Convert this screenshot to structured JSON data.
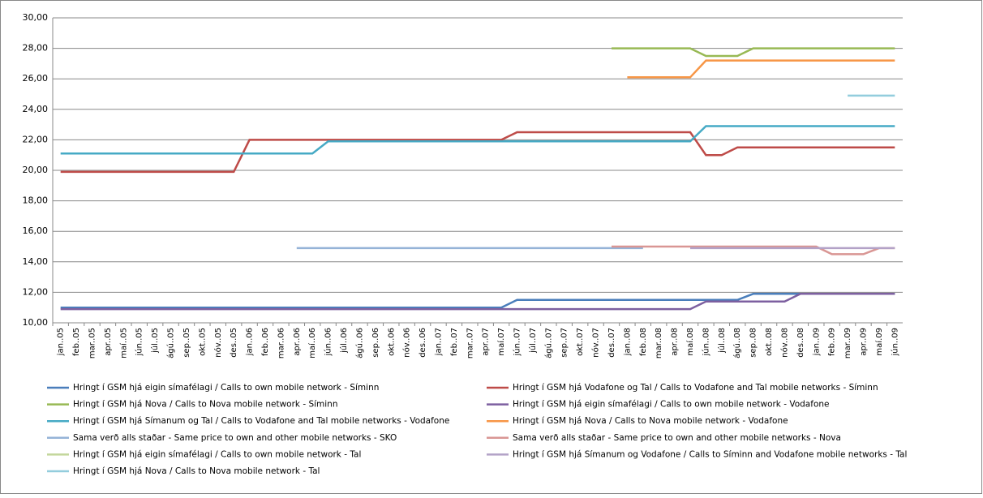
{
  "chart_data": {
    "type": "line",
    "categories": [
      "jan..05",
      "feb..05",
      "mar..05",
      "apr..05",
      "maí..05",
      "jún..05",
      "júl..05",
      "ágú..05",
      "sep..05",
      "okt..05",
      "nóv..05",
      "des..05",
      "jan..06",
      "feb..06",
      "mar..06",
      "apr..06",
      "maí..06",
      "jún..06",
      "júl..06",
      "ágú..06",
      "sep..06",
      "okt..06",
      "nóv..06",
      "des..06",
      "jan..07",
      "feb..07",
      "mar..07",
      "apr..07",
      "maí.07",
      "jún..07",
      "júl..07",
      "ágú..07",
      "sep..07",
      "okt..07",
      "nóv..07",
      "des..07",
      "jan..08",
      "feb..08",
      "mar..08",
      "apr..08",
      "maí.08",
      "jún..08",
      "júl..08",
      "ágú..08",
      "sep..08",
      "okt..08",
      "nóv..08",
      "des..08",
      "jan..09",
      "feb..09",
      "mar..09",
      "apr..09",
      "maí.09",
      "jún..09"
    ],
    "ylim": [
      10,
      30
    ],
    "yticks": [
      {
        "value": 10,
        "label": "10,00"
      },
      {
        "value": 12,
        "label": "12,00"
      },
      {
        "value": 14,
        "label": "14,00"
      },
      {
        "value": 16,
        "label": "16,00"
      },
      {
        "value": 18,
        "label": "18,00"
      },
      {
        "value": 20,
        "label": "20,00"
      },
      {
        "value": 22,
        "label": "22,00"
      },
      {
        "value": 24,
        "label": "24,00"
      },
      {
        "value": 26,
        "label": "26,00"
      },
      {
        "value": 28,
        "label": "28,00"
      },
      {
        "value": 30,
        "label": "30,00"
      }
    ],
    "grid": true,
    "series": [
      {
        "name": "Hringt í GSM hjá eigin símafélagi / Calls to own mobile network - Síminn",
        "color": "#4a7ebb",
        "values": [
          11,
          11,
          11,
          11,
          11,
          11,
          11,
          11,
          11,
          11,
          11,
          11,
          11,
          11,
          11,
          11,
          11,
          11,
          11,
          11,
          11,
          11,
          11,
          11,
          11,
          11,
          11,
          11,
          11,
          11.5,
          11.5,
          11.5,
          11.5,
          11.5,
          11.5,
          11.5,
          11.5,
          11.5,
          11.5,
          11.5,
          11.5,
          11.5,
          11.5,
          11.5,
          11.9,
          11.9,
          11.9,
          11.9,
          11.9,
          11.9,
          11.9,
          11.9,
          11.9,
          11.9
        ]
      },
      {
        "name": "Hringt í GSM hjá Vodafone og Tal / Calls to Vodafone and Tal mobile networks - Síminn",
        "color": "#be4b48",
        "values": [
          19.9,
          19.9,
          19.9,
          19.9,
          19.9,
          19.9,
          19.9,
          19.9,
          19.9,
          19.9,
          19.9,
          19.9,
          22,
          22,
          22,
          22,
          22,
          22,
          22,
          22,
          22,
          22,
          22,
          22,
          22,
          22,
          22,
          22,
          22,
          22.5,
          22.5,
          22.5,
          22.5,
          22.5,
          22.5,
          22.5,
          22.5,
          22.5,
          22.5,
          22.5,
          22.5,
          21,
          21,
          21.5,
          21.5,
          21.5,
          21.5,
          21.5,
          21.5,
          21.5,
          21.5,
          21.5,
          21.5,
          21.5
        ]
      },
      {
        "name": "Hringt í GSM hjá Nova / Calls to Nova mobile network - Síminn",
        "color": "#98b954",
        "values": [
          null,
          null,
          null,
          null,
          null,
          null,
          null,
          null,
          null,
          null,
          null,
          null,
          null,
          null,
          null,
          null,
          null,
          null,
          null,
          null,
          null,
          null,
          null,
          null,
          null,
          null,
          null,
          null,
          null,
          null,
          null,
          null,
          null,
          null,
          null,
          28,
          28,
          28,
          28,
          28,
          28,
          27.5,
          27.5,
          27.5,
          28,
          28,
          28,
          28,
          28,
          28,
          28,
          28,
          28,
          28
        ]
      },
      {
        "name": "Hringt í GSM hjá eigin símafélagi  / Calls to own mobile network - Vodafone",
        "color": "#7d60a0",
        "values": [
          10.9,
          10.9,
          10.9,
          10.9,
          10.9,
          10.9,
          10.9,
          10.9,
          10.9,
          10.9,
          10.9,
          10.9,
          10.9,
          10.9,
          10.9,
          10.9,
          10.9,
          10.9,
          10.9,
          10.9,
          10.9,
          10.9,
          10.9,
          10.9,
          10.9,
          10.9,
          10.9,
          10.9,
          10.9,
          10.9,
          10.9,
          10.9,
          10.9,
          10.9,
          10.9,
          10.9,
          10.9,
          10.9,
          10.9,
          10.9,
          10.9,
          11.4,
          11.4,
          11.4,
          11.4,
          11.4,
          11.4,
          11.9,
          11.9,
          11.9,
          11.9,
          11.9,
          11.9,
          11.9
        ]
      },
      {
        "name": "Hringt í GSM hjá Símanum og Tal / Calls to Vodafone and Tal mobile networks - Vodafone",
        "color": "#46aac5",
        "values": [
          21.1,
          21.1,
          21.1,
          21.1,
          21.1,
          21.1,
          21.1,
          21.1,
          21.1,
          21.1,
          21.1,
          21.1,
          21.1,
          21.1,
          21.1,
          21.1,
          21.1,
          21.9,
          21.9,
          21.9,
          21.9,
          21.9,
          21.9,
          21.9,
          21.9,
          21.9,
          21.9,
          21.9,
          21.9,
          21.9,
          21.9,
          21.9,
          21.9,
          21.9,
          21.9,
          21.9,
          21.9,
          21.9,
          21.9,
          21.9,
          21.9,
          22.9,
          22.9,
          22.9,
          22.9,
          22.9,
          22.9,
          22.9,
          22.9,
          22.9,
          22.9,
          22.9,
          22.9,
          22.9
        ]
      },
      {
        "name": "Hringt í GSM hjá Nova / Calls to Nova mobile network - Vodafone",
        "color": "#f79646",
        "values": [
          null,
          null,
          null,
          null,
          null,
          null,
          null,
          null,
          null,
          null,
          null,
          null,
          null,
          null,
          null,
          null,
          null,
          null,
          null,
          null,
          null,
          null,
          null,
          null,
          null,
          null,
          null,
          null,
          null,
          null,
          null,
          null,
          null,
          null,
          null,
          null,
          26.1,
          26.1,
          26.1,
          26.1,
          26.1,
          27.2,
          27.2,
          27.2,
          27.2,
          27.2,
          27.2,
          27.2,
          27.2,
          27.2,
          27.2,
          27.2,
          27.2,
          27.2
        ]
      },
      {
        "name": "Sama verð alls staðar - Same price to own and other mobile networks - SKO",
        "color": "#95b3d7",
        "values": [
          null,
          null,
          null,
          null,
          null,
          null,
          null,
          null,
          null,
          null,
          null,
          null,
          null,
          null,
          null,
          14.9,
          14.9,
          14.9,
          14.9,
          14.9,
          14.9,
          14.9,
          14.9,
          14.9,
          14.9,
          14.9,
          14.9,
          14.9,
          14.9,
          14.9,
          14.9,
          14.9,
          14.9,
          14.9,
          14.9,
          14.9,
          14.9,
          14.9,
          null,
          null,
          null,
          null,
          null,
          null,
          null,
          null,
          null,
          null,
          null,
          null,
          null,
          null,
          null,
          null
        ]
      },
      {
        "name": "Sama verð alls staðar - Same price to own and other mobile networks - Nova",
        "color": "#d99694",
        "values": [
          null,
          null,
          null,
          null,
          null,
          null,
          null,
          null,
          null,
          null,
          null,
          null,
          null,
          null,
          null,
          null,
          null,
          null,
          null,
          null,
          null,
          null,
          null,
          null,
          null,
          null,
          null,
          null,
          null,
          null,
          null,
          null,
          null,
          null,
          null,
          15,
          15,
          15,
          15,
          15,
          15,
          15,
          15,
          15,
          15,
          15,
          15,
          15,
          15,
          14.5,
          14.5,
          14.5,
          14.9,
          14.9
        ]
      },
      {
        "name": "Hringt í GSM hjá eigin símafélagi / Calls to own mobile network - Tal",
        "color": "#c3d69b",
        "values": [
          null,
          null,
          null,
          null,
          null,
          null,
          null,
          null,
          null,
          null,
          null,
          null,
          null,
          null,
          null,
          null,
          null,
          null,
          null,
          null,
          null,
          null,
          null,
          null,
          null,
          null,
          null,
          null,
          null,
          null,
          null,
          null,
          null,
          null,
          null,
          null,
          null,
          null,
          null,
          null,
          null,
          null,
          null,
          null,
          null,
          null,
          null,
          null,
          null,
          null,
          null,
          null,
          null,
          null
        ]
      },
      {
        "name": "Hringt í GSM hjá Símanum og Vodafone / Calls to Síminn and Vodafone mobile networks - Tal",
        "color": "#b3a2c7",
        "values": [
          null,
          null,
          null,
          null,
          null,
          null,
          null,
          null,
          null,
          null,
          null,
          null,
          null,
          null,
          null,
          null,
          null,
          null,
          null,
          null,
          null,
          null,
          null,
          null,
          null,
          null,
          null,
          null,
          null,
          null,
          null,
          null,
          null,
          null,
          null,
          null,
          null,
          null,
          null,
          null,
          14.9,
          14.9,
          14.9,
          14.9,
          14.9,
          14.9,
          14.9,
          14.9,
          14.9,
          14.9,
          14.9,
          14.9,
          14.9,
          14.9
        ]
      },
      {
        "name": "Hringt í GSM hjá Nova / Calls to Nova mobile network - Tal",
        "color": "#93cddd",
        "values": [
          null,
          null,
          null,
          null,
          null,
          null,
          null,
          null,
          null,
          null,
          null,
          null,
          null,
          null,
          null,
          null,
          null,
          null,
          null,
          null,
          null,
          null,
          null,
          null,
          null,
          null,
          null,
          null,
          null,
          null,
          null,
          null,
          null,
          null,
          null,
          null,
          null,
          null,
          null,
          null,
          null,
          null,
          null,
          null,
          null,
          null,
          null,
          null,
          null,
          null,
          24.9,
          24.9,
          24.9,
          24.9
        ]
      }
    ]
  }
}
